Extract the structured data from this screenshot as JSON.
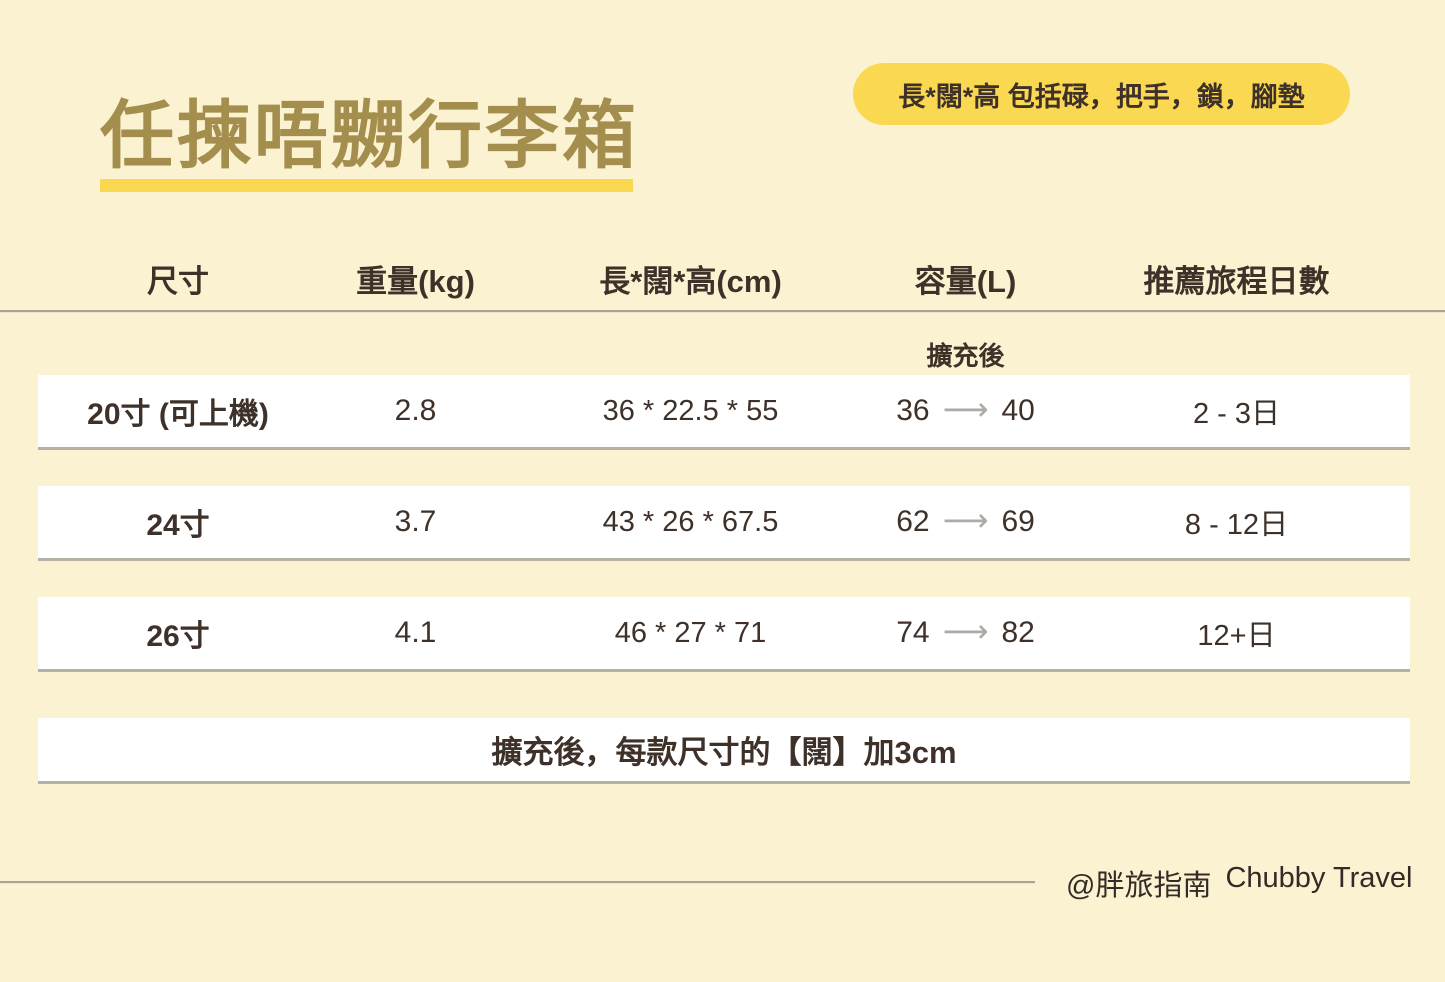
{
  "title": {
    "text": "任揀唔嬲行李箱"
  },
  "note_pill": {
    "text": "長*闊*高 包括碌，把手，鎖，腳墊"
  },
  "table": {
    "headers": {
      "size": "尺寸",
      "weight": "重量(kg)",
      "dimensions": "長*闊*高(cm)",
      "capacity": "容量(L)",
      "days": "推薦旅程日數"
    },
    "expanded_label": "擴充後",
    "arrow_glyph": "⟶",
    "rows": [
      {
        "size": "20寸 (可上機)",
        "weight": "2.8",
        "dimensions": "36 * 22.5 * 55",
        "capacity_before": "36",
        "capacity_after": "40",
        "days": "2 - 3日"
      },
      {
        "size": "24寸",
        "weight": "3.7",
        "dimensions": "43 * 26 * 67.5",
        "capacity_before": "62",
        "capacity_after": "69",
        "days": "8 - 12日"
      },
      {
        "size": "26寸",
        "weight": "4.1",
        "dimensions": "46 * 27 * 71",
        "capacity_before": "74",
        "capacity_after": "82",
        "days": "12+日"
      }
    ]
  },
  "footnote": {
    "text": "擴充後，每款尺寸的【闊】加3cm"
  },
  "footer": {
    "handle": "@胖旅指南",
    "brand": "Chubby Travel"
  },
  "colors": {
    "background": "#FBF2D1",
    "accent_yellow": "#FBD851",
    "title_gold": "#A38E4D",
    "text_dark_brown": "#3E3129",
    "row_white": "#FFFFFF",
    "rule_gray": "#A8A29A",
    "arrow_gray": "#ADABA6"
  },
  "chart_data": {
    "type": "table",
    "title": "任揀唔嬲行李箱",
    "columns": [
      "尺寸",
      "重量(kg)",
      "長*闊*高(cm)",
      "容量(L)",
      "容量(L) 擴充後",
      "推薦旅程日數"
    ],
    "rows": [
      [
        "20寸 (可上機)",
        2.8,
        "36 * 22.5 * 55",
        36,
        40,
        "2 - 3日"
      ],
      [
        "24寸",
        3.7,
        "43 * 26 * 67.5",
        62,
        69,
        "8 - 12日"
      ],
      [
        "26寸",
        4.1,
        "46 * 27 * 71",
        74,
        82,
        "12+日"
      ]
    ],
    "annotations": [
      "長*闊*高 包括碌，把手，鎖，腳墊",
      "擴充後，每款尺寸的【闊】加3cm",
      "@胖旅指南 Chubby Travel"
    ]
  }
}
